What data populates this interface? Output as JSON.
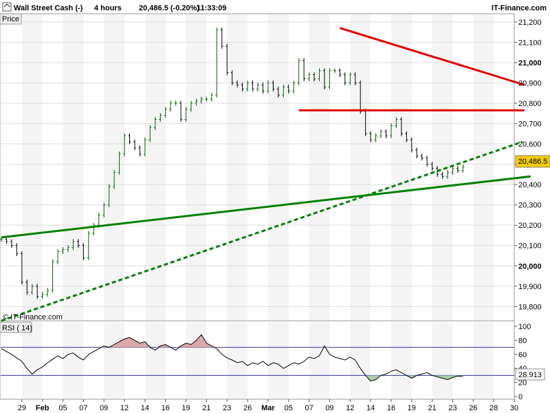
{
  "header": {
    "instrument": "Wall Street Cash (-)",
    "timeframe": "4 hours",
    "last_change": "20,486.5 (-0.20%)",
    "time": "11:33:09",
    "brand": "IT-Finance.com"
  },
  "price_panel": {
    "label": "Price",
    "watermark": "© IT-Finance.com",
    "last_price_tag": "20,486.5"
  },
  "rsi_panel": {
    "label": "RSI ( 14)",
    "last_value_tag": "28.913"
  },
  "chart_data": [
    {
      "type": "line",
      "title": "Wall Street Cash (-)",
      "ylim": [
        19730,
        21240
      ],
      "y_ticks": [
        "19,800",
        "19,900",
        "20,000",
        "20,100",
        "20,200",
        "20,300",
        "20,400",
        "20,500",
        "20,600",
        "20,700",
        "20,800",
        "20,900",
        "21,000",
        "21,100",
        "21,200"
      ],
      "y_ticks_bold": [
        "20,000",
        "21,000"
      ],
      "x_ticks": [
        "29",
        "Feb",
        "05",
        "07",
        "09",
        "12",
        "14",
        "16",
        "19",
        "21",
        "23",
        "26",
        "Mar",
        "05",
        "07",
        "09",
        "12",
        "14",
        "16",
        "19",
        "21",
        "23",
        "26",
        "28",
        "30"
      ],
      "x_ticks_bold": [
        "Feb",
        "Mar"
      ],
      "x_range": [
        0,
        25
      ],
      "grid": true,
      "colors": {
        "bar_up": "#006600",
        "bar_down": "#000000",
        "resistance": "#e00000",
        "support": "#008000",
        "tag_bg": "#f2cc00"
      },
      "x": [
        0,
        0.25,
        0.5,
        0.75,
        1,
        1.25,
        1.5,
        1.75,
        2,
        2.25,
        2.5,
        2.75,
        3,
        3.25,
        3.5,
        3.75,
        4,
        4.25,
        4.5,
        4.75,
        5,
        5.25,
        5.5,
        5.75,
        6,
        6.25,
        6.5,
        6.75,
        7,
        7.25,
        7.5,
        7.75,
        8,
        8.25,
        8.5,
        8.75,
        9,
        9.25,
        9.5,
        9.75,
        10,
        10.25,
        10.5,
        10.75,
        11,
        11.25,
        11.5,
        11.75,
        12,
        12.25,
        12.5,
        12.75,
        13,
        13.25,
        13.5,
        13.75,
        14,
        14.25,
        14.5,
        14.75,
        15,
        15.25,
        15.5,
        15.75,
        16,
        16.25,
        16.5,
        16.75,
        17,
        17.25,
        17.5,
        17.75,
        18,
        18.25,
        18.5,
        18.75,
        19,
        19.25,
        19.5,
        19.75,
        20,
        20.25,
        20.5,
        20.75,
        21,
        21.25,
        21.5,
        21.75,
        22,
        22.25,
        22.5
      ],
      "series": [
        {
          "values": [
            20130,
            20120,
            20100,
            20060,
            19920,
            19870,
            19900,
            19850,
            19860,
            19880,
            20020,
            20070,
            20080,
            20090,
            20120,
            20100,
            20040,
            20160,
            20200,
            20250,
            20300,
            20390,
            20460,
            20550,
            20640,
            20610,
            20580,
            20550,
            20620,
            20680,
            20720,
            20740,
            20770,
            20800,
            20800,
            20720,
            20770,
            20800,
            20810,
            20820,
            20820,
            20840,
            21160,
            21080,
            20950,
            20900,
            20890,
            20870,
            20900,
            20870,
            20890,
            20860,
            20900,
            20870,
            20840,
            20880,
            20860,
            20900,
            21010,
            20920,
            20940,
            20920,
            20960,
            20880,
            20960,
            20960,
            20940,
            20900,
            20940,
            20900,
            20760,
            20650,
            20620,
            20640,
            20660,
            20640,
            20690,
            20720,
            20650,
            20620,
            20570,
            20540,
            20530,
            20500,
            20480,
            20450,
            20440,
            20460,
            20480,
            20470,
            20486.5
          ]
        }
      ],
      "annotations": [
        {
          "name": "resistance line",
          "color": "#e00000",
          "from": [
            16.5,
            21170
          ],
          "to": [
            25.5,
            20890
          ]
        },
        {
          "name": "horizontal resistance",
          "color": "#e00000",
          "from": [
            14.5,
            20765
          ],
          "to": [
            25.5,
            20765
          ]
        },
        {
          "name": "long-term support",
          "color": "#008000",
          "from": [
            0,
            20140
          ],
          "to": [
            25.8,
            20440
          ]
        },
        {
          "name": "short-term support (dashed)",
          "color": "#008000",
          "dashed": true,
          "from": [
            0,
            19730
          ],
          "to": [
            25.4,
            20610
          ]
        }
      ]
    },
    {
      "type": "line",
      "title": "RSI ( 14)",
      "ylim": [
        0,
        100
      ],
      "y_ticks": [
        "0",
        "20",
        "40",
        "60",
        "80",
        "100"
      ],
      "levels": [
        30,
        70
      ],
      "x": [
        0,
        1,
        2,
        3,
        4,
        5,
        6,
        7,
        8,
        9,
        10,
        11,
        12,
        13,
        14,
        15,
        16,
        17,
        18,
        19,
        20,
        21,
        22,
        23,
        24,
        25,
        26,
        27,
        28,
        29,
        30,
        31,
        32,
        33,
        34,
        35,
        36,
        37,
        38,
        39,
        40,
        41,
        42,
        43,
        44,
        45,
        46,
        47,
        48,
        49,
        50,
        51,
        52,
        53,
        54,
        55,
        56,
        57,
        58,
        59,
        60,
        61,
        62,
        63,
        64,
        65,
        66,
        67,
        68,
        69,
        70,
        71,
        72,
        73,
        74,
        75,
        76,
        77,
        78,
        79,
        80,
        81,
        82,
        83,
        84,
        85,
        86,
        87,
        88,
        89,
        90
      ],
      "series": [
        {
          "values": [
            68,
            64,
            60,
            55,
            50,
            40,
            32,
            38,
            42,
            48,
            53,
            58,
            54,
            60,
            62,
            56,
            52,
            60,
            64,
            68,
            72,
            70,
            74,
            78,
            82,
            84,
            80,
            76,
            78,
            70,
            66,
            72,
            74,
            70,
            66,
            72,
            76,
            74,
            80,
            88,
            76,
            72,
            68,
            60,
            55,
            52,
            48,
            50,
            44,
            48,
            46,
            50,
            44,
            48,
            46,
            40,
            44,
            48,
            46,
            50,
            56,
            54,
            58,
            72,
            60,
            56,
            54,
            52,
            56,
            52,
            40,
            30,
            22,
            24,
            30,
            32,
            36,
            38,
            34,
            30,
            26,
            30,
            32,
            34,
            30,
            28,
            26,
            24,
            27,
            29,
            28.913
          ]
        }
      ]
    }
  ]
}
